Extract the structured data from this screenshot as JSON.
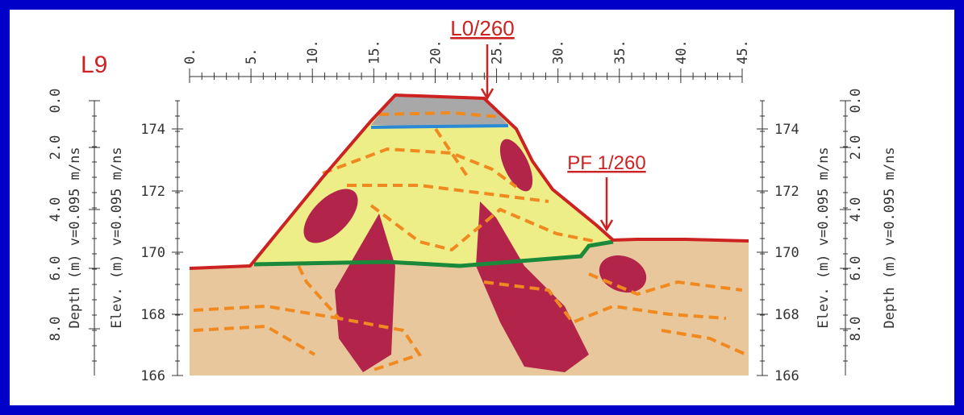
{
  "title": "L9",
  "annotations": [
    {
      "label": "L0/260"
    },
    {
      "label": "PF 1/260"
    }
  ],
  "top_axis": {
    "ticks": [
      "0.",
      "5.",
      "10.",
      "15.",
      "20.",
      "25.",
      "30.",
      "35.",
      "40.",
      "45."
    ]
  },
  "left_depth_axis": {
    "title": "Depth (m) v=0.095 m/ns",
    "ticks": [
      "0.0",
      "2.0",
      "4.0",
      "6.0",
      "8.0"
    ]
  },
  "left_elev_axis": {
    "title": "Elev. (m) v=0.095 m/ns",
    "ticks": [
      "174",
      "172",
      "170",
      "168",
      "166"
    ]
  },
  "right_elev_axis": {
    "title": "Elev. (m) v=0.095 m/ns",
    "ticks": [
      "174",
      "172",
      "170",
      "168",
      "166"
    ]
  },
  "right_depth_axis": {
    "title": "Depth (m) v=0.095 m/ns",
    "ticks": [
      "0.0",
      "2.0",
      "4.0",
      "6.0",
      "8.0"
    ]
  }
}
